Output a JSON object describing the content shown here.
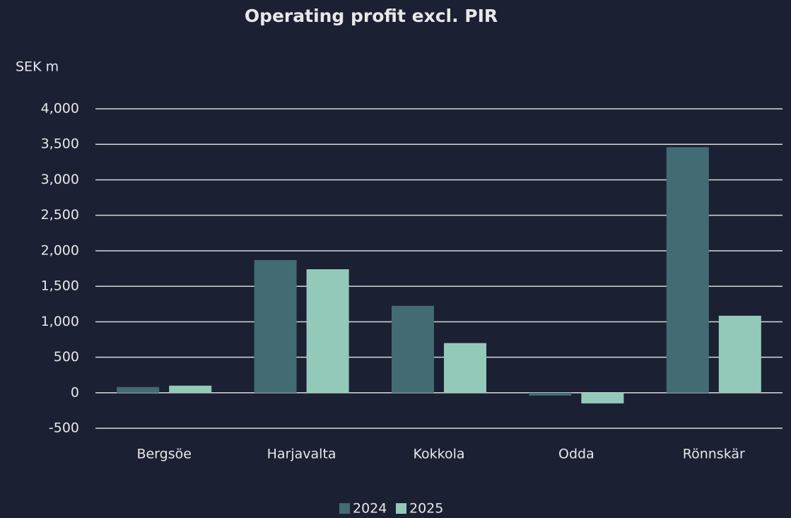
{
  "chart_data": {
    "type": "bar",
    "title": "Operating profit excl. PIR",
    "y_label": "SEK m",
    "categories": [
      "Bergsöe",
      "Harjavalta",
      "Kokkola",
      "Odda",
      "Rönnskär"
    ],
    "series": [
      {
        "name": "2024",
        "color": "#426b73",
        "values": [
          80,
          1870,
          1225,
          -40,
          3460
        ]
      },
      {
        "name": "2025",
        "color": "#93c9b9",
        "values": [
          100,
          1740,
          700,
          -150,
          1085
        ]
      }
    ],
    "ylim": [
      -500,
      4000
    ],
    "yticks": [
      -500,
      0,
      500,
      {
        "value": 1000,
        "label": "1,000"
      },
      {
        "value": 1500,
        "label": "1,500"
      },
      {
        "value": 2000,
        "label": "2,000"
      },
      {
        "value": 2500,
        "label": "2,500"
      },
      {
        "value": 3000,
        "label": "3,000"
      },
      {
        "value": 3500,
        "label": "3,500"
      },
      {
        "value": 4000,
        "label": "4,000"
      }
    ],
    "grid": true,
    "legend": "bottom"
  }
}
